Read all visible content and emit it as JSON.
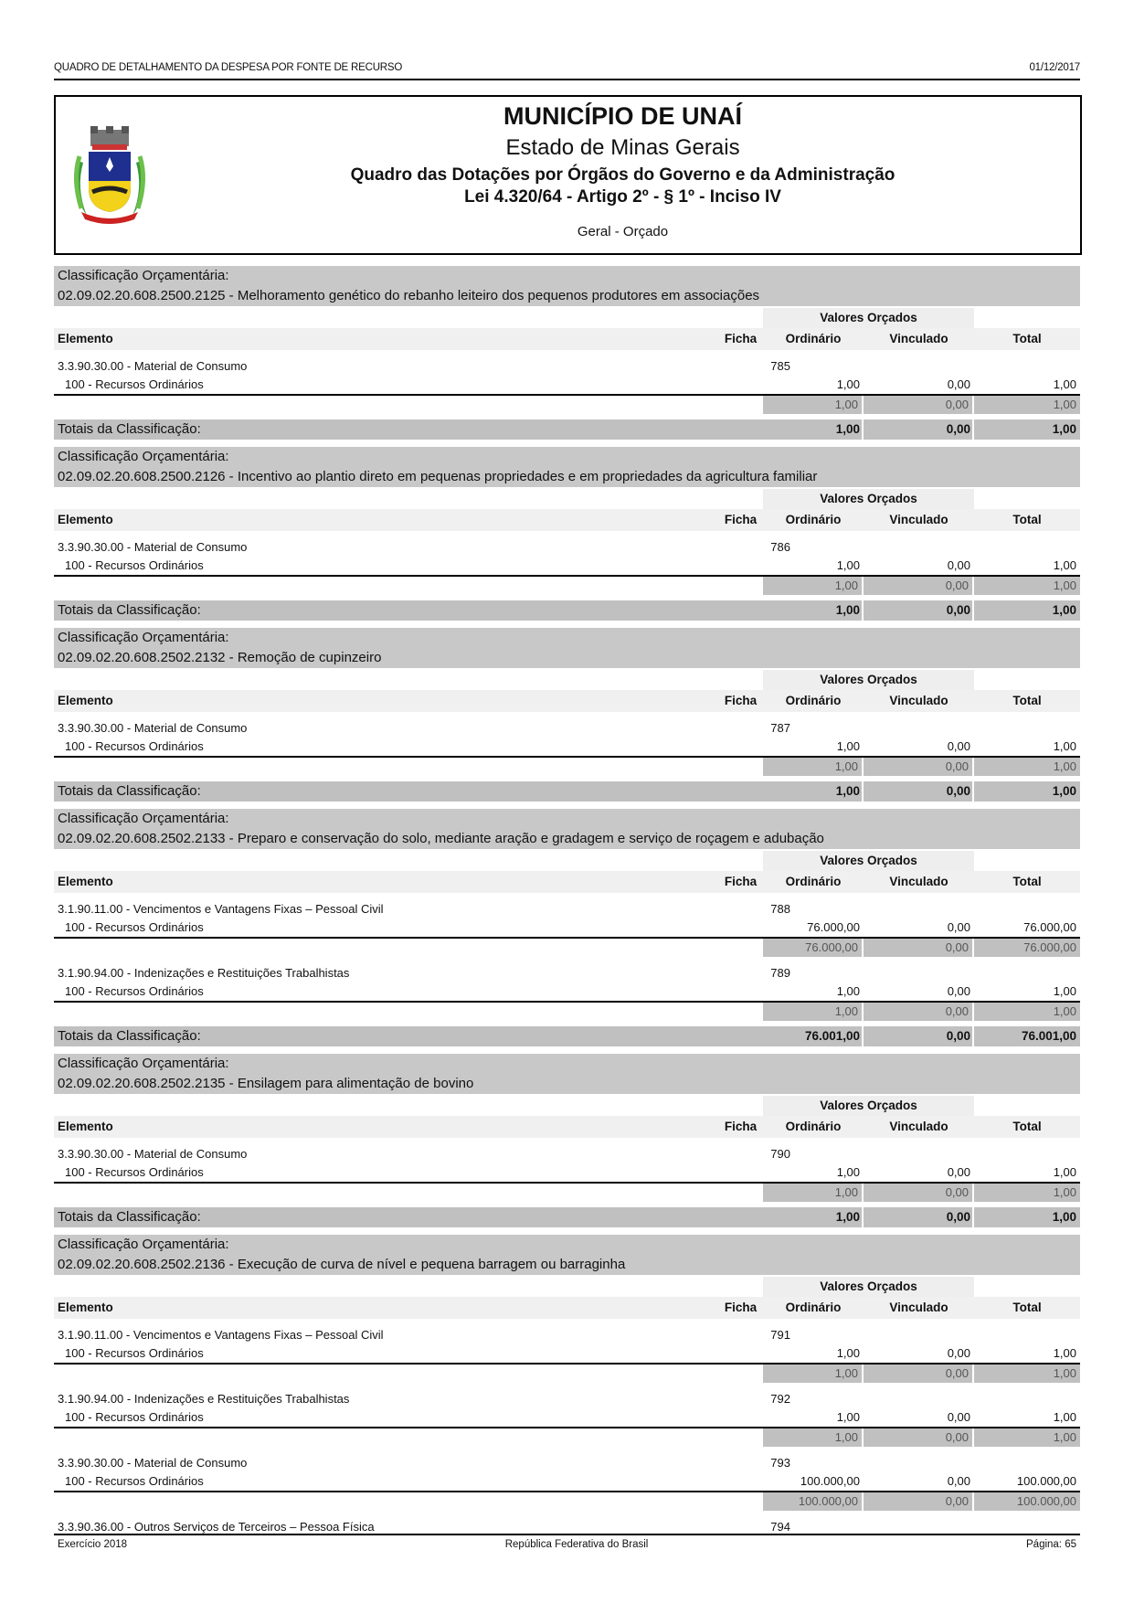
{
  "header": {
    "report_name": "QUADRO DE DETALHAMENTO DA DESPESA POR FONTE DE RECURSO",
    "date": "01/12/2017"
  },
  "title": {
    "municipality": "MUNICÍPIO DE UNAÍ",
    "state": "Estado de Minas Gerais",
    "subtitle": "Quadro das Dotações por Órgãos do Governo e da Administração",
    "law": "Lei 4.320/64 - Artigo 2º - § 1º - Inciso IV",
    "scope": "Geral - Orçado",
    "logo": "coat-of-arms-unai"
  },
  "labels": {
    "classification": "Classificação Orçamentária:",
    "valores_orcados": "Valores Orçados",
    "elemento": "Elemento",
    "ficha": "Ficha",
    "ordinario": "Ordinário",
    "vinculado": "Vinculado",
    "total": "Total",
    "totais": "Totais da Classificação:"
  },
  "sections": [
    {
      "code_title": "02.09.02.20.608.2500.2125 - Melhoramento genético do rebanho leiteiro dos pequenos produtores em associações",
      "entries": [
        {
          "elemento": "3.3.90.30.00 - Material de Consumo",
          "ficha": "785",
          "fonte": "100 - Recursos Ordinários",
          "ordinario": "1,00",
          "vinculado": "0,00",
          "total": "1,00",
          "sub_ordinario": "1,00",
          "sub_vinculado": "0,00",
          "sub_total": "1,00"
        }
      ],
      "totals": {
        "ordinario": "1,00",
        "vinculado": "0,00",
        "total": "1,00"
      }
    },
    {
      "code_title": "02.09.02.20.608.2500.2126 - Incentivo ao plantio direto em pequenas propriedades e em propriedades da agricultura familiar",
      "entries": [
        {
          "elemento": "3.3.90.30.00 - Material de Consumo",
          "ficha": "786",
          "fonte": "100 - Recursos Ordinários",
          "ordinario": "1,00",
          "vinculado": "0,00",
          "total": "1,00",
          "sub_ordinario": "1,00",
          "sub_vinculado": "0,00",
          "sub_total": "1,00"
        }
      ],
      "totals": {
        "ordinario": "1,00",
        "vinculado": "0,00",
        "total": "1,00"
      }
    },
    {
      "code_title": "02.09.02.20.608.2502.2132 - Remoção de cupinzeiro",
      "entries": [
        {
          "elemento": "3.3.90.30.00 - Material de Consumo",
          "ficha": "787",
          "fonte": "100 - Recursos Ordinários",
          "ordinario": "1,00",
          "vinculado": "0,00",
          "total": "1,00",
          "sub_ordinario": "1,00",
          "sub_vinculado": "0,00",
          "sub_total": "1,00"
        }
      ],
      "totals": {
        "ordinario": "1,00",
        "vinculado": "0,00",
        "total": "1,00"
      }
    },
    {
      "code_title": "02.09.02.20.608.2502.2133 - Preparo e conservação do solo, mediante aração e gradagem e serviço de roçagem e adubação",
      "entries": [
        {
          "elemento": "3.1.90.11.00 - Vencimentos e Vantagens Fixas – Pessoal Civil",
          "ficha": "788",
          "fonte": "100 - Recursos Ordinários",
          "ordinario": "76.000,00",
          "vinculado": "0,00",
          "total": "76.000,00",
          "sub_ordinario": "76.000,00",
          "sub_vinculado": "0,00",
          "sub_total": "76.000,00"
        },
        {
          "elemento": "3.1.90.94.00 - Indenizações e Restituições Trabalhistas",
          "ficha": "789",
          "fonte": "100 - Recursos Ordinários",
          "ordinario": "1,00",
          "vinculado": "0,00",
          "total": "1,00",
          "sub_ordinario": "1,00",
          "sub_vinculado": "0,00",
          "sub_total": "1,00"
        }
      ],
      "totals": {
        "ordinario": "76.001,00",
        "vinculado": "0,00",
        "total": "76.001,00"
      }
    },
    {
      "code_title": "02.09.02.20.608.2502.2135 - Ensilagem para alimentação de bovino",
      "entries": [
        {
          "elemento": "3.3.90.30.00 - Material de Consumo",
          "ficha": "790",
          "fonte": "100 - Recursos Ordinários",
          "ordinario": "1,00",
          "vinculado": "0,00",
          "total": "1,00",
          "sub_ordinario": "1,00",
          "sub_vinculado": "0,00",
          "sub_total": "1,00"
        }
      ],
      "totals": {
        "ordinario": "1,00",
        "vinculado": "0,00",
        "total": "1,00"
      }
    },
    {
      "code_title": "02.09.02.20.608.2502.2136 - Execução de curva de nível e pequena barragem ou barraginha",
      "entries": [
        {
          "elemento": "3.1.90.11.00 - Vencimentos e Vantagens Fixas – Pessoal Civil",
          "ficha": "791",
          "fonte": "100 - Recursos Ordinários",
          "ordinario": "1,00",
          "vinculado": "0,00",
          "total": "1,00",
          "sub_ordinario": "1,00",
          "sub_vinculado": "0,00",
          "sub_total": "1,00"
        },
        {
          "elemento": "3.1.90.94.00 - Indenizações e Restituições Trabalhistas",
          "ficha": "792",
          "fonte": "100 - Recursos Ordinários",
          "ordinario": "1,00",
          "vinculado": "0,00",
          "total": "1,00",
          "sub_ordinario": "1,00",
          "sub_vinculado": "0,00",
          "sub_total": "1,00"
        },
        {
          "elemento": "3.3.90.30.00 - Material de Consumo",
          "ficha": "793",
          "fonte": "100 - Recursos Ordinários",
          "ordinario": "100.000,00",
          "vinculado": "0,00",
          "total": "100.000,00",
          "sub_ordinario": "100.000,00",
          "sub_vinculado": "0,00",
          "sub_total": "100.000,00"
        },
        {
          "elemento": "3.3.90.36.00 - Outros Serviços de Terceiros – Pessoa Física",
          "ficha": "794"
        }
      ]
    }
  ],
  "footer": {
    "exercise": "Exercício 2018",
    "center": "República Federativa do Brasil",
    "page": "Página: 65"
  }
}
